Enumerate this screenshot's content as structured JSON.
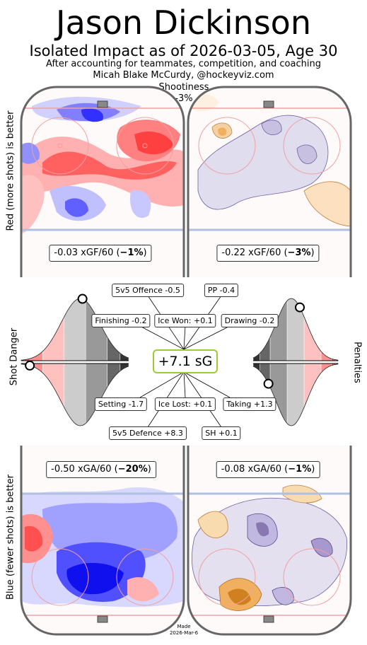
{
  "header": {
    "title": "Jason Dickinson",
    "subtitle": "Isolated Impact as of 2026-03-05, Age 30",
    "line3": "After accounting for teammates, competition, and coaching",
    "line4": "Micah Blake McCurdy, @hockeyviz.com",
    "shootiness_label": "Shootiness",
    "shootiness_value": "-3%"
  },
  "axis_labels": {
    "top_left": "Red (more shots) is better",
    "middle_left": "Shot Danger",
    "bottom_left": "Blue (fewer shots) is better",
    "right": "Penalties"
  },
  "rates": {
    "xgf_even_pre": "-0.03 xGF/60 (",
    "xgf_even_bold": "−1%",
    "xgf_pp_pre": "-0.22 xGF/60 (",
    "xgf_pp_bold": "−3%",
    "xga_even_pre": "-0.50 xGA/60 (",
    "xga_even_bold": "−20%",
    "xga_pk_pre": "-0.08 xGA/60 (",
    "xga_pk_bold": "−1%",
    "close": ")"
  },
  "total": "+7.1 sG",
  "components": {
    "offence": "5v5 Offence -0.5",
    "pp": "PP -0.4",
    "finishing": "Finishing -0.2",
    "ice_won": "Ice Won: +0.1",
    "drawing": "Drawing -0.2",
    "setting": "Setting -1.7",
    "ice_lost": "Ice Lost: +0.1",
    "taking": "Taking +1.3",
    "defence": "5v5 Defence +8.3",
    "sh": "SH +0.1"
  },
  "footer": {
    "made_label": "Made",
    "made_date": "2026-Mar-6"
  },
  "colors": {
    "red": "#ff3030",
    "blue": "#2020ff",
    "pp_purple": "#8878b0",
    "pp_orange": "#f0a040",
    "sg_border": "#9acd32",
    "rink_line": "#666666"
  },
  "chart_data": {
    "type": "distribution",
    "shot_danger": {
      "offence_percentile": 0.57,
      "defence_percentile": 0.08
    },
    "penalties": {
      "drawing_percentile": 0.45,
      "taking_percentile": 0.82
    }
  }
}
